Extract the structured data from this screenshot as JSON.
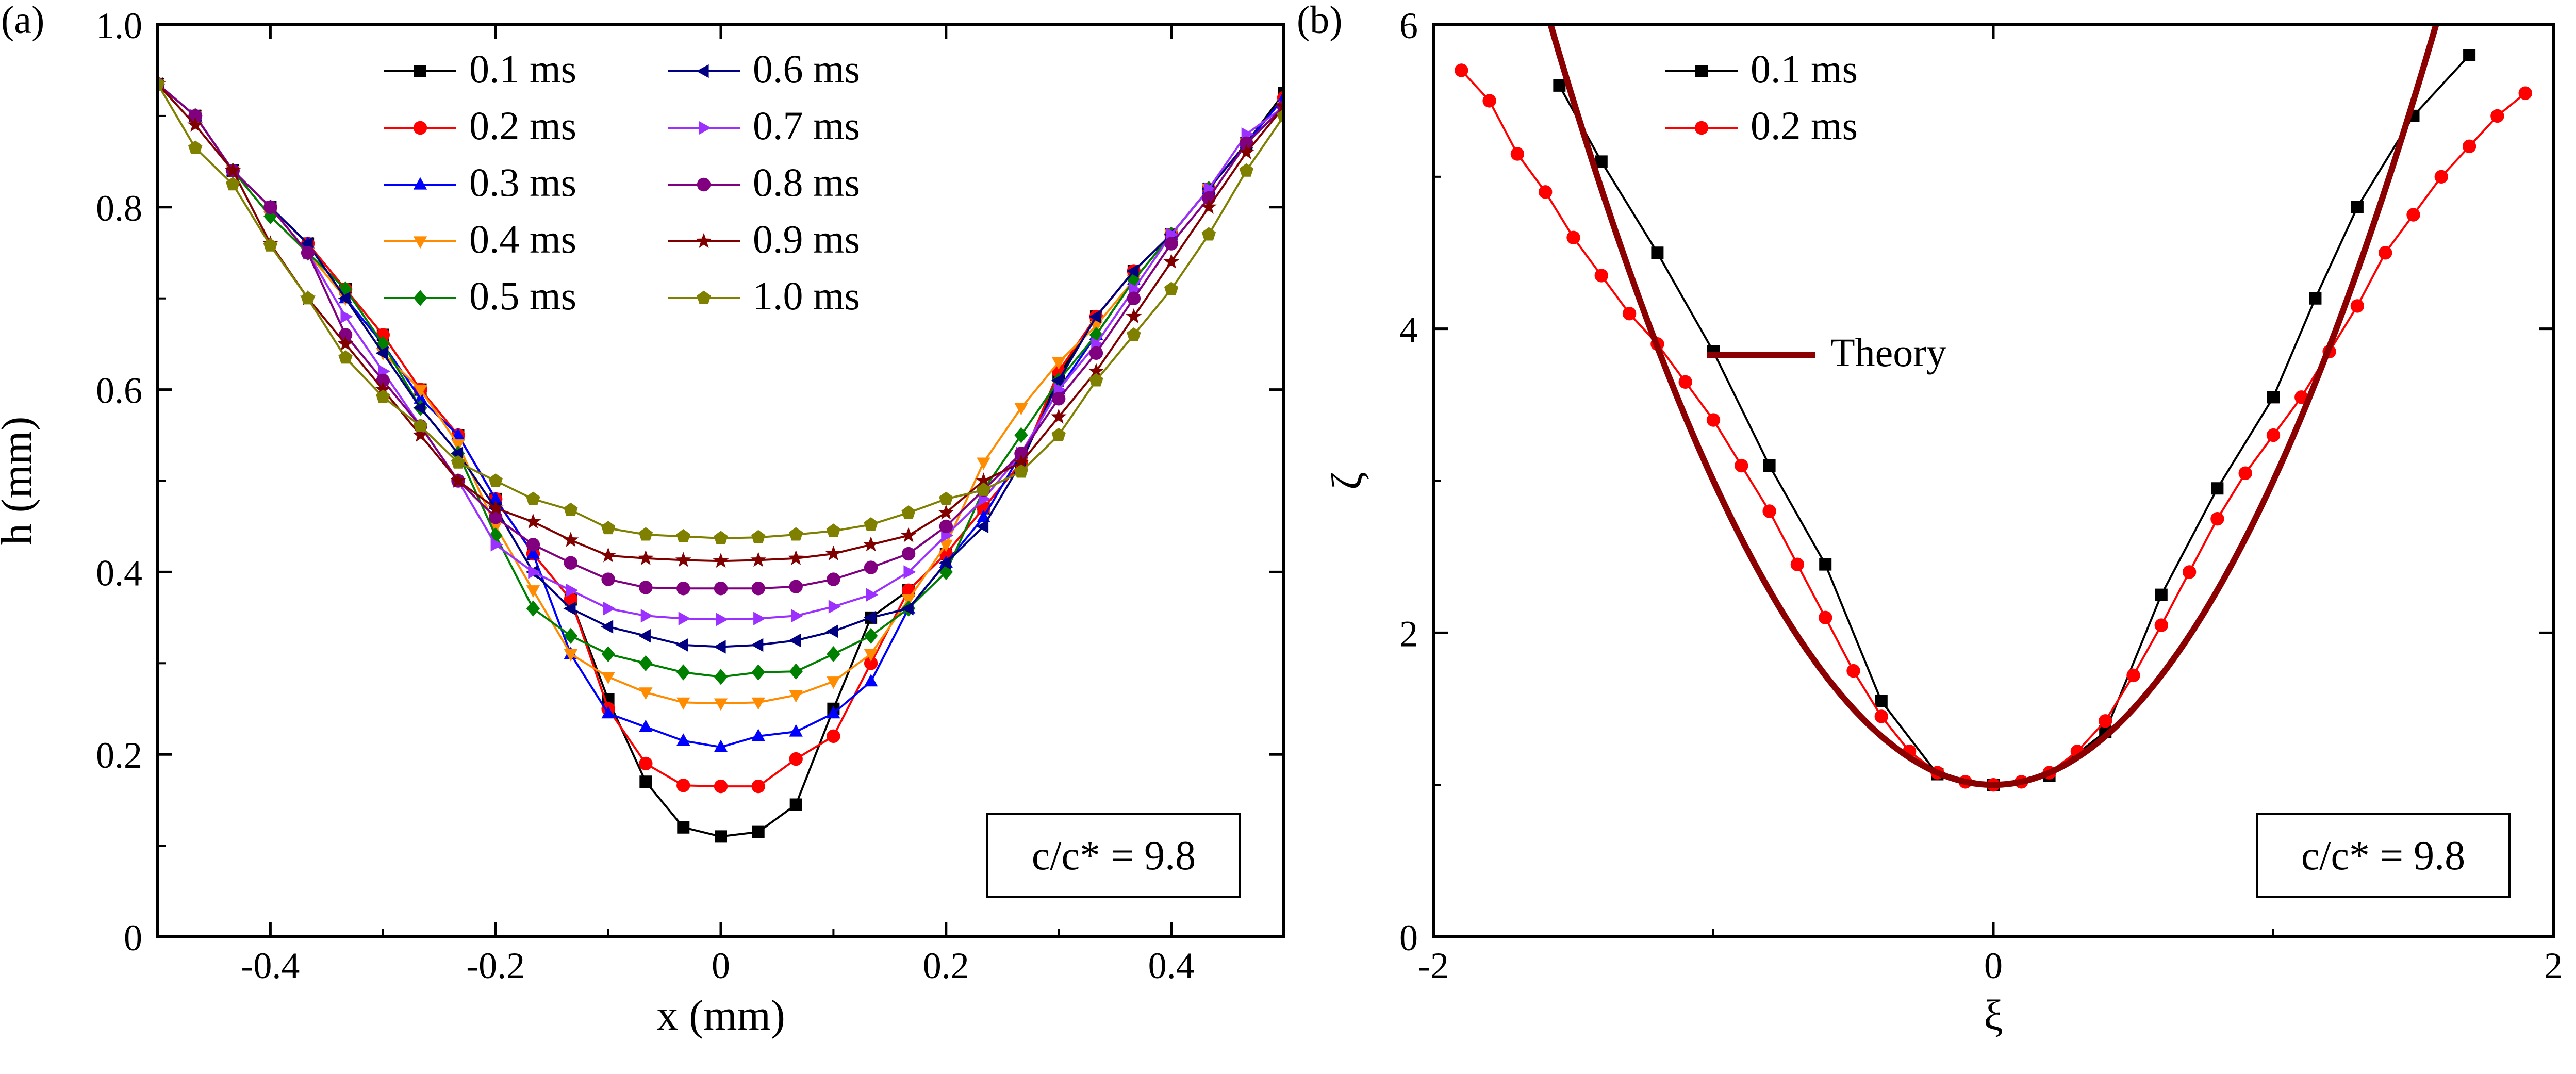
{
  "chart_data": [
    {
      "type": "line",
      "panel_label": "(a)",
      "xlabel": "x (mm)",
      "ylabel": "h (mm)",
      "xlim": [
        -0.5,
        0.5
      ],
      "ylim": [
        0,
        1.0
      ],
      "xticks": [
        -0.4,
        -0.2,
        0,
        0.2,
        0.4
      ],
      "xtick_labels": [
        "-0.4",
        "-0.2",
        "0",
        "0.2",
        "0.4"
      ],
      "yticks": [
        0,
        0.2,
        0.4,
        0.6,
        0.8,
        1.0
      ],
      "ytick_labels": [
        "0",
        "0.2",
        "0.4",
        "0.6",
        "0.8",
        "1.0"
      ],
      "annotation": "c/c* = 9.8",
      "legend_position": "top",
      "x": [
        -0.5,
        -0.4667,
        -0.4333,
        -0.4,
        -0.3667,
        -0.3333,
        -0.3,
        -0.2667,
        -0.2333,
        -0.2,
        -0.1667,
        -0.1333,
        -0.1,
        -0.0667,
        -0.0333,
        0,
        0.0333,
        0.0667,
        0.1,
        0.1333,
        0.1667,
        0.2,
        0.2333,
        0.2667,
        0.3,
        0.3333,
        0.3667,
        0.4,
        0.4333,
        0.4667,
        0.5
      ],
      "series": [
        {
          "name": "0.1 ms",
          "color": "#000000",
          "marker": "square",
          "values": [
            0.935,
            0.9,
            0.84,
            0.8,
            0.76,
            0.71,
            0.66,
            0.6,
            0.55,
            0.48,
            0.42,
            0.37,
            0.26,
            0.17,
            0.12,
            0.11,
            0.115,
            0.145,
            0.25,
            0.35,
            0.38,
            0.42,
            0.47,
            0.52,
            0.615,
            0.68,
            0.73,
            0.77,
            0.82,
            0.87,
            0.925
          ]
        },
        {
          "name": "0.2 ms",
          "color": "#ff0000",
          "marker": "circle",
          "values": [
            0.935,
            0.9,
            0.84,
            0.8,
            0.76,
            0.71,
            0.66,
            0.6,
            0.55,
            0.48,
            0.42,
            0.37,
            0.25,
            0.19,
            0.166,
            0.165,
            0.165,
            0.195,
            0.22,
            0.3,
            0.38,
            0.42,
            0.47,
            0.52,
            0.62,
            0.68,
            0.73,
            0.77,
            0.82,
            0.87,
            0.92
          ]
        },
        {
          "name": "0.3 ms",
          "color": "#0000ff",
          "marker": "triangle-up",
          "values": [
            0.935,
            0.9,
            0.84,
            0.8,
            0.76,
            0.7,
            0.65,
            0.59,
            0.55,
            0.48,
            0.42,
            0.31,
            0.245,
            0.23,
            0.215,
            0.208,
            0.22,
            0.225,
            0.245,
            0.28,
            0.36,
            0.41,
            0.46,
            0.53,
            0.6,
            0.66,
            0.72,
            0.77,
            0.82,
            0.87,
            0.92
          ]
        },
        {
          "name": "0.4 ms",
          "color": "#ff8c00",
          "marker": "triangle-down",
          "values": [
            0.935,
            0.9,
            0.84,
            0.79,
            0.75,
            0.7,
            0.64,
            0.6,
            0.54,
            0.45,
            0.38,
            0.31,
            0.285,
            0.268,
            0.257,
            0.256,
            0.257,
            0.265,
            0.28,
            0.31,
            0.37,
            0.43,
            0.52,
            0.58,
            0.63,
            0.67,
            0.72,
            0.77,
            0.82,
            0.87,
            0.91
          ]
        },
        {
          "name": "0.5 ms",
          "color": "#008000",
          "marker": "diamond",
          "values": [
            0.935,
            0.9,
            0.84,
            0.79,
            0.75,
            0.71,
            0.65,
            0.58,
            0.53,
            0.44,
            0.36,
            0.33,
            0.31,
            0.3,
            0.29,
            0.285,
            0.29,
            0.291,
            0.31,
            0.33,
            0.36,
            0.4,
            0.49,
            0.55,
            0.61,
            0.66,
            0.72,
            0.77,
            0.82,
            0.87,
            0.91
          ]
        },
        {
          "name": "0.6 ms",
          "color": "#000080",
          "marker": "triangle-left",
          "values": [
            0.935,
            0.9,
            0.84,
            0.8,
            0.76,
            0.7,
            0.64,
            0.58,
            0.53,
            0.47,
            0.4,
            0.36,
            0.34,
            0.33,
            0.32,
            0.318,
            0.32,
            0.325,
            0.335,
            0.35,
            0.36,
            0.41,
            0.45,
            0.52,
            0.61,
            0.68,
            0.73,
            0.77,
            0.82,
            0.87,
            0.91
          ]
        },
        {
          "name": "0.7 ms",
          "color": "#9b30ff",
          "marker": "triangle-right",
          "values": [
            0.935,
            0.9,
            0.84,
            0.8,
            0.75,
            0.68,
            0.62,
            0.56,
            0.5,
            0.43,
            0.4,
            0.38,
            0.36,
            0.352,
            0.349,
            0.348,
            0.349,
            0.352,
            0.362,
            0.375,
            0.4,
            0.44,
            0.48,
            0.53,
            0.6,
            0.65,
            0.71,
            0.77,
            0.82,
            0.88,
            0.91
          ]
        },
        {
          "name": "0.8 ms",
          "color": "#800080",
          "marker": "circle",
          "values": [
            0.935,
            0.9,
            0.84,
            0.8,
            0.75,
            0.66,
            0.61,
            0.56,
            0.5,
            0.46,
            0.43,
            0.41,
            0.392,
            0.383,
            0.382,
            0.382,
            0.382,
            0.384,
            0.392,
            0.405,
            0.42,
            0.45,
            0.49,
            0.53,
            0.59,
            0.64,
            0.7,
            0.76,
            0.81,
            0.87,
            0.91
          ]
        },
        {
          "name": "0.9 ms",
          "color": "#800000",
          "marker": "star",
          "values": [
            0.935,
            0.89,
            0.84,
            0.76,
            0.7,
            0.65,
            0.6,
            0.55,
            0.5,
            0.47,
            0.455,
            0.435,
            0.418,
            0.415,
            0.413,
            0.412,
            0.413,
            0.415,
            0.42,
            0.43,
            0.44,
            0.465,
            0.5,
            0.52,
            0.57,
            0.62,
            0.68,
            0.74,
            0.8,
            0.86,
            0.91
          ]
        },
        {
          "name": "1.0 ms",
          "color": "#808000",
          "marker": "pentagon",
          "values": [
            0.935,
            0.865,
            0.825,
            0.758,
            0.7,
            0.635,
            0.592,
            0.56,
            0.52,
            0.5,
            0.48,
            0.468,
            0.448,
            0.441,
            0.439,
            0.437,
            0.438,
            0.441,
            0.445,
            0.452,
            0.465,
            0.48,
            0.49,
            0.51,
            0.55,
            0.61,
            0.66,
            0.71,
            0.77,
            0.84,
            0.9
          ]
        }
      ]
    },
    {
      "type": "line",
      "panel_label": "(b)",
      "xlabel": "ξ",
      "ylabel": "ζ",
      "xlim": [
        -2,
        2
      ],
      "ylim": [
        0,
        6
      ],
      "xticks": [
        -2,
        0,
        2
      ],
      "xtick_labels": [
        "-2",
        "0",
        "2"
      ],
      "yticks": [
        0,
        2,
        4,
        6
      ],
      "ytick_labels": [
        "0",
        "2",
        "4",
        "6"
      ],
      "annotation": "c/c* = 9.8",
      "legend_position": "top",
      "theory": {
        "name": "Theory",
        "color": "#8b0000",
        "formula": "zeta = 1 + 2 * xi^2"
      },
      "series": [
        {
          "name": "0.1 ms",
          "color": "#000000",
          "marker": "square",
          "x": [
            -1.55,
            -1.4,
            -1.2,
            -1.0,
            -0.8,
            -0.6,
            -0.4,
            -0.2,
            0,
            0.2,
            0.4,
            0.6,
            0.8,
            1.0,
            1.15,
            1.3,
            1.5,
            1.7
          ],
          "y": [
            5.6,
            5.1,
            4.5,
            3.85,
            3.1,
            2.45,
            1.55,
            1.07,
            1.0,
            1.06,
            1.35,
            2.25,
            2.95,
            3.55,
            4.2,
            4.8,
            5.4,
            5.8
          ]
        },
        {
          "name": "0.2 ms",
          "color": "#ff0000",
          "marker": "circle",
          "x": [
            -1.9,
            -1.8,
            -1.7,
            -1.6,
            -1.5,
            -1.4,
            -1.3,
            -1.2,
            -1.1,
            -1.0,
            -0.9,
            -0.8,
            -0.7,
            -0.6,
            -0.5,
            -0.4,
            -0.3,
            -0.2,
            -0.1,
            0,
            0.1,
            0.2,
            0.3,
            0.4,
            0.5,
            0.6,
            0.7,
            0.8,
            0.9,
            1.0,
            1.1,
            1.2,
            1.3,
            1.4,
            1.5,
            1.6,
            1.7,
            1.8,
            1.9
          ],
          "y": [
            5.7,
            5.5,
            5.15,
            4.9,
            4.6,
            4.35,
            4.1,
            3.9,
            3.65,
            3.4,
            3.1,
            2.8,
            2.45,
            2.1,
            1.75,
            1.45,
            1.22,
            1.08,
            1.02,
            1.0,
            1.02,
            1.08,
            1.22,
            1.42,
            1.72,
            2.05,
            2.4,
            2.75,
            3.05,
            3.3,
            3.55,
            3.85,
            4.15,
            4.5,
            4.75,
            5.0,
            5.2,
            5.4,
            5.55
          ]
        }
      ]
    }
  ]
}
